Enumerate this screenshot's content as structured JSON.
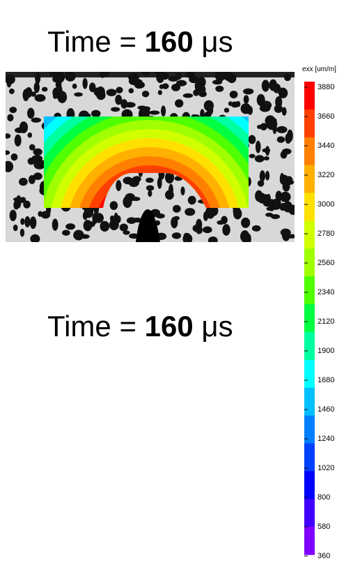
{
  "captions": [
    {
      "prefix": "Time =",
      "value": "160",
      "unit": "μs"
    },
    {
      "prefix": "Time =",
      "value": "160",
      "unit": "μs"
    }
  ],
  "colorbar": {
    "title": "exx [um/m]",
    "ticks": [
      3880,
      3660,
      3440,
      3220,
      3000,
      2780,
      2560,
      2340,
      2120,
      1900,
      1680,
      1460,
      1240,
      1020,
      800,
      580,
      360
    ],
    "colors": [
      "#ff0000",
      "#ff4000",
      "#ff8000",
      "#ffb000",
      "#ffe000",
      "#d0ff00",
      "#a0ff00",
      "#50ff00",
      "#00ff40",
      "#00ffa0",
      "#00ffff",
      "#00c0ff",
      "#0080ff",
      "#0040ff",
      "#0000ff",
      "#4000ff",
      "#8000ff",
      "#ff00ff"
    ]
  }
}
